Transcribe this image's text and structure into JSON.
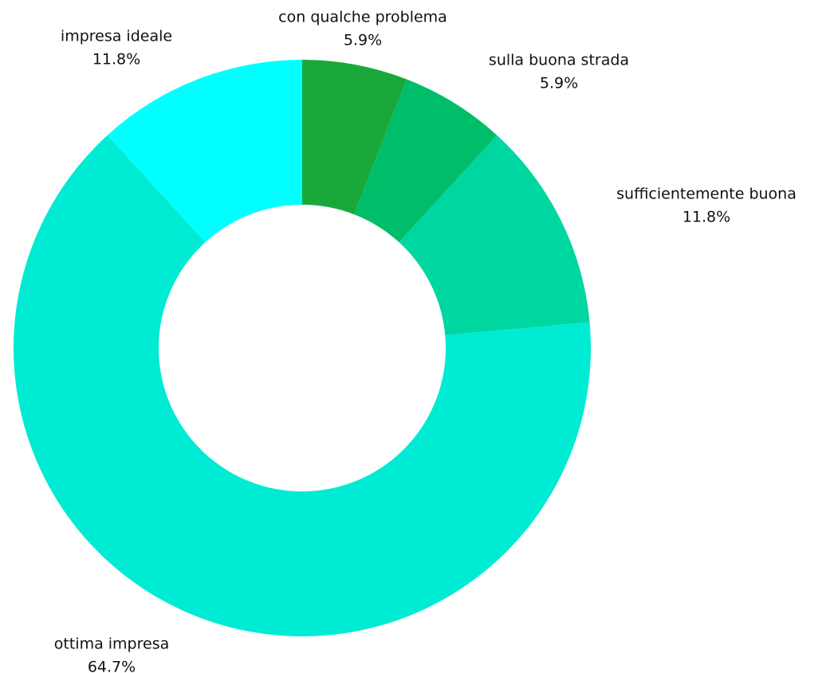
{
  "chart_data": {
    "type": "pie",
    "variant": "donut",
    "start": "top",
    "direction": "clockwise",
    "categories": [
      "con qualche problema",
      "sulla buona strada",
      "sufficientemente buona",
      "ottima impresa",
      "impresa ideale"
    ],
    "values": [
      5.9,
      5.9,
      11.8,
      64.7,
      11.8
    ],
    "value_labels": [
      "5.9%",
      "5.9%",
      "11.8%",
      "64.7%",
      "11.8%"
    ],
    "colors": [
      "#1aa83a",
      "#00bd6a",
      "#00d6a0",
      "#00ebd3",
      "#00ffff"
    ],
    "legend": "none",
    "data_labels": "outside"
  }
}
